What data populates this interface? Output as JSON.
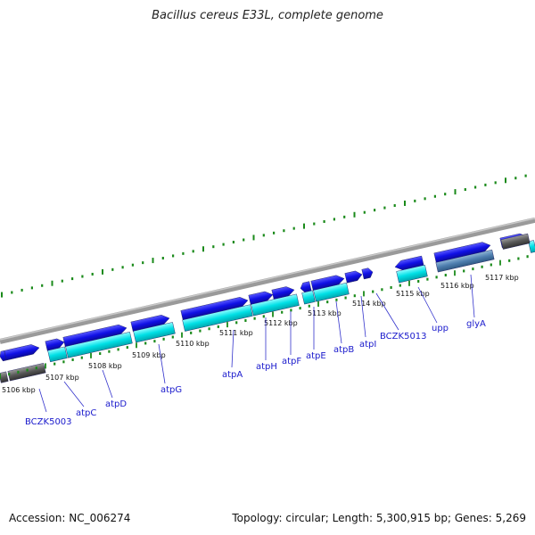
{
  "title": "Bacillus cereus E33L, complete genome",
  "footer": {
    "accession": "Accession: NC_006274",
    "summary": "Topology: circular; Length: 5,300,915 bp; Genes: 5,269"
  },
  "colors": {
    "backbone": "#8a8a8a",
    "cds_forward": "#1010e6",
    "cds_reverse": "#00e0e6",
    "rna": "#5a5a5a",
    "rrna": "#4f7fb0",
    "tick": "#1a8a1a",
    "label": "#1a1acc"
  },
  "scale_labels": [
    "5106 kbp",
    "5107 kbp",
    "5108 kbp",
    "5109 kbp",
    "5110 kbp",
    "5111 kbp",
    "5112 kbp",
    "5113 kbp",
    "5114 kbp",
    "5115 kbp",
    "5116 kbp",
    "5117 kbp"
  ],
  "gene_labels": [
    "BCZK5003",
    "atpC",
    "atpD",
    "atpG",
    "atpA",
    "atpH",
    "atpF",
    "atpE",
    "atpB",
    "atpI",
    "BCZK5013",
    "upp",
    "glyA"
  ]
}
